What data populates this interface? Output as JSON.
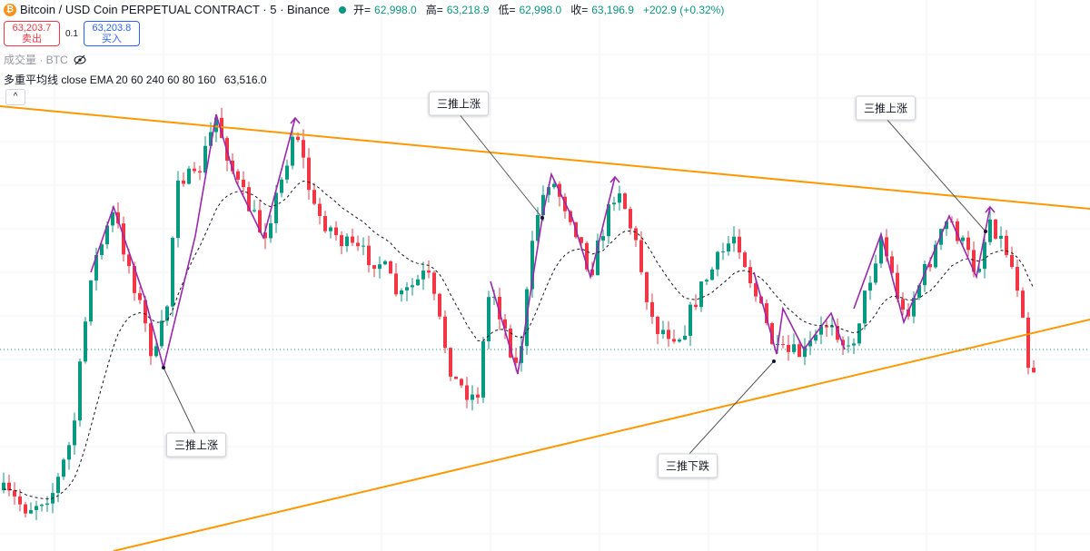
{
  "header": {
    "symbol": "Bitcoin / USD Coin PERPETUAL CONTRACT · 5 · Binance",
    "ohlc": [
      {
        "label": "开=",
        "value": "62,998.0"
      },
      {
        "label": "高=",
        "value": "63,218.9"
      },
      {
        "label": "低=",
        "value": "62,998.0"
      },
      {
        "label": "收=",
        "value": "63,196.9"
      }
    ],
    "change": "+202.9 (+0.32%)"
  },
  "order": {
    "sell_price": "63,203.7",
    "sell": "卖出",
    "qty": "0.1",
    "buy_price": "63,203.8",
    "buy": "买入"
  },
  "volume": "成交量 · BTC",
  "indicator": {
    "name": "多重平均线",
    "params": "close EMA 20 60 240 60 80 160",
    "value": "63,516.0"
  },
  "annotations": [
    "三推上涨",
    "三推上涨",
    "三推上涨",
    "三推下跌"
  ]
}
